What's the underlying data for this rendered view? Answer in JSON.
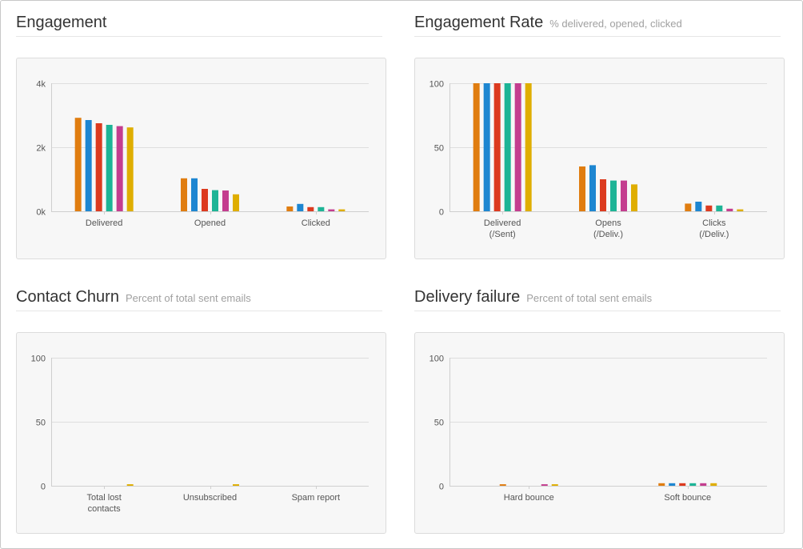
{
  "colors": [
    "#e07d10",
    "#1d86d1",
    "#dc3a1f",
    "#1db496",
    "#c43d8f",
    "#dfae00"
  ],
  "sections": [
    {
      "title": "Engagement",
      "subtitle": ""
    },
    {
      "title": "Engagement Rate",
      "subtitle": "% delivered, opened, clicked"
    },
    {
      "title": "Contact Churn",
      "subtitle": "Percent of total sent emails"
    },
    {
      "title": "Delivery failure",
      "subtitle": "Percent of total sent emails"
    }
  ],
  "chart_data": [
    {
      "type": "bar",
      "categories": [
        [
          "Delivered"
        ],
        [
          "Opened"
        ],
        [
          "Clicked"
        ]
      ],
      "ylim": [
        0,
        4000
      ],
      "yticks": [
        {
          "value": 0,
          "label": "0k"
        },
        {
          "value": 2000,
          "label": "2k"
        },
        {
          "value": 4000,
          "label": "4k"
        }
      ],
      "series": [
        {
          "values": [
            2920,
            1030,
            150
          ]
        },
        {
          "values": [
            2850,
            1030,
            230
          ]
        },
        {
          "values": [
            2750,
            700,
            130
          ]
        },
        {
          "values": [
            2700,
            660,
            130
          ]
        },
        {
          "values": [
            2660,
            650,
            60
          ]
        },
        {
          "values": [
            2620,
            530,
            60
          ]
        }
      ]
    },
    {
      "type": "bar",
      "categories": [
        [
          "Delivered",
          "(/Sent)"
        ],
        [
          "Opens",
          "(/Deliv.)"
        ],
        [
          "Clicks",
          "(/Deliv.)"
        ]
      ],
      "ylim": [
        0,
        100
      ],
      "yticks": [
        {
          "value": 0,
          "label": "0"
        },
        {
          "value": 50,
          "label": "50"
        },
        {
          "value": 100,
          "label": "100"
        }
      ],
      "series": [
        {
          "values": [
            100,
            35,
            6
          ]
        },
        {
          "values": [
            100,
            36,
            7.5
          ]
        },
        {
          "values": [
            100,
            25,
            4.5
          ]
        },
        {
          "values": [
            100,
            24,
            4.5
          ]
        },
        {
          "values": [
            100,
            24,
            2
          ]
        },
        {
          "values": [
            100,
            21,
            1.5
          ]
        }
      ]
    },
    {
      "type": "bar",
      "categories": [
        [
          "Total lost",
          "contacts"
        ],
        [
          "Unsubscribed"
        ],
        [
          "Spam report"
        ]
      ],
      "ylim": [
        0,
        100
      ],
      "yticks": [
        {
          "value": 0,
          "label": "0"
        },
        {
          "value": 50,
          "label": "50"
        },
        {
          "value": 100,
          "label": "100"
        }
      ],
      "series": [
        {
          "values": [
            0,
            0,
            0
          ]
        },
        {
          "values": [
            0,
            0,
            0
          ]
        },
        {
          "values": [
            0,
            0,
            0
          ]
        },
        {
          "values": [
            0,
            0,
            0
          ]
        },
        {
          "values": [
            0,
            0,
            0
          ]
        },
        {
          "values": [
            1.2,
            1.2,
            0
          ]
        }
      ]
    },
    {
      "type": "bar",
      "categories": [
        [
          "Hard bounce"
        ],
        [
          "Soft bounce"
        ]
      ],
      "ylim": [
        0,
        100
      ],
      "yticks": [
        {
          "value": 0,
          "label": "0"
        },
        {
          "value": 50,
          "label": "50"
        },
        {
          "value": 100,
          "label": "100"
        }
      ],
      "series": [
        {
          "values": [
            1.2,
            2
          ]
        },
        {
          "values": [
            0,
            2
          ]
        },
        {
          "values": [
            0,
            2
          ]
        },
        {
          "values": [
            0,
            2
          ]
        },
        {
          "values": [
            1.2,
            2
          ]
        },
        {
          "values": [
            1.2,
            2
          ]
        }
      ]
    }
  ]
}
